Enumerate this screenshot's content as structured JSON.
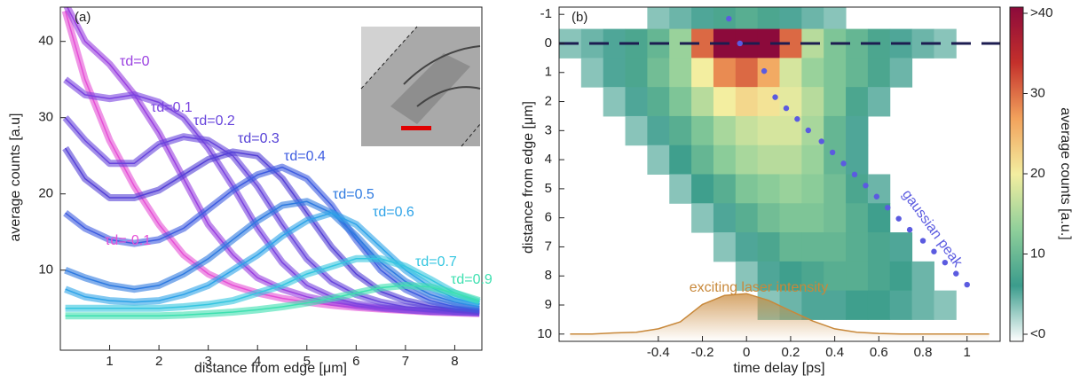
{
  "chart_data": [
    {
      "type": "line",
      "panel_label": "(a)",
      "xlabel": "distance from edge [μm]",
      "ylabel": "average counts [a.u]",
      "xlim": [
        0,
        8.55
      ],
      "ylim": [
        -0.5,
        44.5
      ],
      "xticks": [
        1,
        2,
        3,
        4,
        5,
        6,
        7,
        8
      ],
      "yticks": [
        10,
        20,
        30,
        40
      ],
      "x": [
        0.1,
        0.5,
        1,
        1.5,
        2,
        2.5,
        3,
        3.5,
        4,
        4.5,
        5,
        5.5,
        6,
        6.5,
        7,
        7.5,
        8,
        8.5
      ],
      "series": [
        {
          "name": "τd=-0.1",
          "color": "#e550d6",
          "values": [
            44,
            35,
            27,
            21,
            16,
            12,
            9.5,
            8,
            7,
            6.3,
            5.8,
            5.4,
            5.1,
            4.9,
            4.7,
            4.5,
            4.4,
            4.3
          ]
        },
        {
          "name": "τd=0",
          "color": "#9a3fe0",
          "values": [
            45,
            40,
            37,
            33,
            28,
            22,
            16,
            12,
            9,
            7.5,
            6.5,
            5.8,
            5.3,
            5,
            4.8,
            4.6,
            4.5,
            4.4
          ]
        },
        {
          "name": "τd=0.1",
          "color": "#7a43df",
          "values": [
            35,
            33,
            32.5,
            33,
            32,
            30,
            26,
            21,
            15.5,
            11,
            8,
            6.5,
            5.6,
            5.1,
            4.8,
            4.6,
            4.5,
            4.4
          ]
        },
        {
          "name": "τd=0.2",
          "color": "#6845dc",
          "values": [
            30,
            27,
            24,
            24,
            26.5,
            27.5,
            27,
            25,
            21,
            16,
            11.5,
            8.5,
            6.8,
            5.8,
            5.2,
            4.9,
            4.6,
            4.5
          ]
        },
        {
          "name": "τd=0.3",
          "color": "#5541d6",
          "values": [
            26,
            22,
            19.5,
            19.5,
            20.5,
            22.5,
            24.5,
            25.5,
            25,
            22,
            17.5,
            13,
            9.5,
            7.2,
            6,
            5.3,
            4.9,
            4.6
          ]
        },
        {
          "name": "τd=0.4",
          "color": "#3d5ce0",
          "values": [
            17.5,
            15.5,
            14,
            13.5,
            14,
            15.5,
            18,
            20.5,
            22.5,
            23.5,
            22,
            18.5,
            14,
            10,
            7.5,
            6,
            5.2,
            4.8
          ]
        },
        {
          "name": "τd=0.5",
          "color": "#2e7ae0",
          "values": [
            10,
            9,
            8,
            7.5,
            8,
            9.5,
            11.5,
            14,
            16.5,
            18.5,
            19,
            17.5,
            14.5,
            11,
            8.5,
            6.8,
            5.8,
            5.2
          ]
        },
        {
          "name": "τd=0.6",
          "color": "#2ea3e8",
          "values": [
            7.5,
            6.5,
            6,
            5.8,
            6,
            6.8,
            8,
            10,
            12,
            14.5,
            16.5,
            17.5,
            16,
            13,
            10,
            7.8,
            6.3,
            5.5
          ]
        },
        {
          "name": "τd=0.7",
          "color": "#35c6e0",
          "values": [
            5,
            5,
            5,
            5,
            5,
            5.2,
            5.5,
            6,
            7,
            8,
            9.5,
            10.5,
            11.5,
            11.5,
            10.5,
            8.8,
            7,
            5.8
          ]
        },
        {
          "name": "τd=0.9",
          "color": "#3ee0b0",
          "values": [
            4,
            4,
            4,
            4,
            4,
            4.1,
            4.3,
            4.5,
            4.8,
            5.2,
            5.7,
            6.3,
            7,
            7.7,
            8,
            7.8,
            7,
            6
          ]
        }
      ]
    },
    {
      "type": "heatmap",
      "panel_label": "(b)",
      "xlabel": "time delay [ps]",
      "ylabel": "distance from edge [μm]",
      "xlim": [
        -0.85,
        1.15
      ],
      "ylim": [
        10.25,
        -1.25
      ],
      "xticks": [
        -0.4,
        -0.2,
        0,
        0.2,
        0.4,
        0.6,
        0.8,
        1
      ],
      "yticks": [
        -1,
        0,
        1,
        2,
        3,
        4,
        5,
        6,
        7,
        8,
        9,
        10
      ],
      "x": [
        -0.8,
        -0.7,
        -0.6,
        -0.5,
        -0.4,
        -0.3,
        -0.2,
        -0.1,
        0,
        0.1,
        0.2,
        0.3,
        0.4,
        0.5,
        0.6,
        0.7,
        0.8,
        0.9,
        1.0,
        1.1
      ],
      "y": [
        -1,
        0,
        1,
        2,
        3,
        4,
        5,
        6,
        7,
        8,
        9
      ],
      "values": [
        [
          null,
          null,
          null,
          null,
          4,
          5,
          6,
          8,
          9,
          8,
          6,
          5,
          4,
          null,
          null,
          null,
          null,
          null,
          null,
          null
        ],
        [
          4,
          5,
          6,
          8,
          10,
          14,
          30,
          42,
          45,
          40,
          30,
          16,
          12,
          10,
          8,
          6,
          5,
          4,
          null,
          null
        ],
        [
          null,
          4,
          6,
          8,
          11,
          14,
          20,
          28,
          30,
          26,
          18,
          14,
          12,
          10,
          8,
          5,
          null,
          null,
          null,
          null
        ],
        [
          null,
          null,
          4,
          6,
          9,
          12,
          16,
          20,
          22,
          21,
          19,
          16,
          12,
          8,
          5,
          null,
          null,
          null,
          null,
          null
        ],
        [
          null,
          null,
          null,
          4,
          6,
          9,
          12,
          15,
          17,
          18,
          18,
          15,
          10,
          6,
          null,
          null,
          null,
          null,
          null,
          null
        ],
        [
          null,
          null,
          null,
          null,
          4,
          7,
          10,
          13,
          15,
          16,
          16,
          14,
          10,
          6,
          null,
          null,
          null,
          null,
          null,
          null
        ],
        [
          null,
          null,
          null,
          null,
          null,
          4,
          7,
          9,
          12,
          13,
          14,
          13,
          11,
          8,
          5,
          null,
          null,
          null,
          null,
          null
        ],
        [
          null,
          null,
          null,
          null,
          null,
          null,
          4,
          6,
          9,
          11,
          12,
          12,
          11,
          9,
          7,
          null,
          null,
          null,
          null,
          null
        ],
        [
          null,
          null,
          null,
          null,
          null,
          null,
          null,
          4,
          6,
          8,
          10,
          10,
          10,
          9,
          8,
          6,
          null,
          null,
          null,
          null
        ],
        [
          null,
          null,
          null,
          null,
          null,
          null,
          null,
          null,
          4,
          6,
          7,
          8,
          9,
          9,
          8,
          7,
          5,
          null,
          null,
          null
        ],
        [
          null,
          null,
          null,
          null,
          null,
          null,
          null,
          null,
          null,
          4,
          5,
          6,
          6,
          7,
          7,
          6,
          5,
          4,
          null,
          null
        ]
      ],
      "colormap": [
        "#ffffff",
        "#3b9c8c",
        "#8fcf9a",
        "#f3eea0",
        "#f2a25c",
        "#c4302b",
        "#8c0a3b"
      ],
      "colorbar": {
        "label": "average counts [a.u.]",
        "zlim": [
          0,
          40
        ],
        "ticks": [
          {
            "value": 0,
            "label": "<0"
          },
          10,
          20,
          30,
          {
            "value": 40,
            "label": ">40"
          }
        ]
      },
      "reference_line": {
        "y": 0,
        "color": "#1c1c50"
      },
      "peak": {
        "name": "gaussian peak",
        "color": "#5b5be0",
        "x": [
          -0.08,
          -0.03,
          0.08,
          0.13,
          0.18,
          0.23,
          0.28,
          0.34,
          0.39,
          0.44,
          0.49,
          0.54,
          0.59,
          0.64,
          0.69,
          0.74,
          0.8,
          0.85,
          0.9,
          0.95,
          1.0
        ],
        "y": [
          -0.85,
          0,
          0.95,
          1.85,
          2.23,
          2.6,
          2.99,
          3.37,
          3.75,
          4.13,
          4.51,
          4.89,
          5.27,
          5.65,
          6.03,
          6.41,
          6.79,
          7.16,
          7.54,
          7.92,
          8.3
        ]
      },
      "laser": {
        "name": "exciting laser intensity",
        "color": "#c8883a",
        "x": [
          -0.8,
          -0.7,
          -0.6,
          -0.5,
          -0.4,
          -0.3,
          -0.2,
          -0.1,
          0,
          0.1,
          0.2,
          0.3,
          0.4,
          0.5,
          0.6,
          0.7,
          0.8,
          0.9,
          1.0,
          1.1
        ],
        "y": [
          10,
          10,
          9.96,
          9.94,
          9.82,
          9.58,
          8.98,
          8.67,
          8.61,
          8.84,
          9.2,
          9.55,
          9.82,
          9.94,
          9.98,
          10,
          10,
          10,
          10,
          10
        ]
      }
    }
  ]
}
